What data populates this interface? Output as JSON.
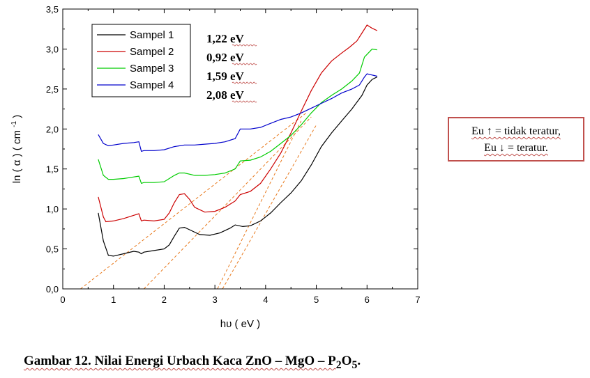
{
  "chart_data": {
    "type": "line",
    "xlabel": "hυ ( eV )",
    "ylabel": "ln ( α ) ( cm",
    "ylabel_sup": "-1",
    "ylabel_end": ")",
    "xlim": [
      0,
      7
    ],
    "ylim": [
      0,
      3.5
    ],
    "x_ticks": [
      0,
      1,
      2,
      3,
      4,
      5,
      6,
      7
    ],
    "y_ticks": [
      0.0,
      0.5,
      1.0,
      1.5,
      2.0,
      2.5,
      3.0,
      3.5
    ],
    "x_tick_labels": [
      "0",
      "1",
      "2",
      "3",
      "4",
      "5",
      "6",
      "7"
    ],
    "y_tick_labels": [
      "0,0",
      "0,5",
      "1,0",
      "1,5",
      "2,0",
      "2,5",
      "3,0",
      "3,5"
    ],
    "legend_position": "top-left",
    "series": [
      {
        "name": "Sampel 1",
        "color": "#000000",
        "points": [
          [
            0.7,
            0.95
          ],
          [
            0.8,
            0.6
          ],
          [
            0.9,
            0.42
          ],
          [
            1.0,
            0.41
          ],
          [
            1.2,
            0.44
          ],
          [
            1.4,
            0.47
          ],
          [
            1.5,
            0.46
          ],
          [
            1.55,
            0.44
          ],
          [
            1.6,
            0.46
          ],
          [
            1.8,
            0.48
          ],
          [
            2.0,
            0.5
          ],
          [
            2.1,
            0.55
          ],
          [
            2.2,
            0.66
          ],
          [
            2.3,
            0.76
          ],
          [
            2.4,
            0.77
          ],
          [
            2.5,
            0.74
          ],
          [
            2.7,
            0.68
          ],
          [
            2.9,
            0.67
          ],
          [
            3.1,
            0.7
          ],
          [
            3.3,
            0.76
          ],
          [
            3.4,
            0.8
          ],
          [
            3.55,
            0.78
          ],
          [
            3.7,
            0.79
          ],
          [
            3.9,
            0.85
          ],
          [
            4.1,
            0.95
          ],
          [
            4.3,
            1.08
          ],
          [
            4.5,
            1.2
          ],
          [
            4.7,
            1.35
          ],
          [
            4.9,
            1.55
          ],
          [
            5.1,
            1.78
          ],
          [
            5.3,
            1.95
          ],
          [
            5.5,
            2.1
          ],
          [
            5.7,
            2.25
          ],
          [
            5.9,
            2.42
          ],
          [
            6.0,
            2.55
          ],
          [
            6.1,
            2.62
          ],
          [
            6.2,
            2.65
          ]
        ]
      },
      {
        "name": "Sampel 2",
        "color": "#cc0000",
        "points": [
          [
            0.7,
            1.15
          ],
          [
            0.8,
            0.9
          ],
          [
            0.85,
            0.84
          ],
          [
            1.0,
            0.85
          ],
          [
            1.2,
            0.88
          ],
          [
            1.4,
            0.92
          ],
          [
            1.5,
            0.94
          ],
          [
            1.55,
            0.85
          ],
          [
            1.6,
            0.86
          ],
          [
            1.8,
            0.85
          ],
          [
            2.0,
            0.87
          ],
          [
            2.1,
            0.95
          ],
          [
            2.2,
            1.08
          ],
          [
            2.3,
            1.18
          ],
          [
            2.4,
            1.19
          ],
          [
            2.5,
            1.12
          ],
          [
            2.6,
            1.02
          ],
          [
            2.8,
            0.96
          ],
          [
            3.0,
            0.97
          ],
          [
            3.2,
            1.02
          ],
          [
            3.4,
            1.1
          ],
          [
            3.5,
            1.18
          ],
          [
            3.7,
            1.22
          ],
          [
            3.9,
            1.32
          ],
          [
            4.1,
            1.5
          ],
          [
            4.3,
            1.7
          ],
          [
            4.5,
            1.95
          ],
          [
            4.7,
            2.22
          ],
          [
            4.9,
            2.48
          ],
          [
            5.1,
            2.7
          ],
          [
            5.3,
            2.85
          ],
          [
            5.5,
            2.95
          ],
          [
            5.65,
            3.02
          ],
          [
            5.8,
            3.1
          ],
          [
            5.9,
            3.2
          ],
          [
            6.0,
            3.3
          ],
          [
            6.1,
            3.26
          ],
          [
            6.2,
            3.23
          ]
        ]
      },
      {
        "name": "Sampel 3",
        "color": "#00cc00",
        "points": [
          [
            0.7,
            1.62
          ],
          [
            0.8,
            1.42
          ],
          [
            0.9,
            1.37
          ],
          [
            1.0,
            1.37
          ],
          [
            1.2,
            1.38
          ],
          [
            1.4,
            1.4
          ],
          [
            1.5,
            1.41
          ],
          [
            1.55,
            1.32
          ],
          [
            1.6,
            1.33
          ],
          [
            1.8,
            1.33
          ],
          [
            2.0,
            1.34
          ],
          [
            2.1,
            1.38
          ],
          [
            2.2,
            1.42
          ],
          [
            2.3,
            1.45
          ],
          [
            2.4,
            1.45
          ],
          [
            2.6,
            1.42
          ],
          [
            2.8,
            1.42
          ],
          [
            3.0,
            1.43
          ],
          [
            3.2,
            1.45
          ],
          [
            3.4,
            1.5
          ],
          [
            3.5,
            1.6
          ],
          [
            3.7,
            1.61
          ],
          [
            3.9,
            1.65
          ],
          [
            4.1,
            1.72
          ],
          [
            4.3,
            1.82
          ],
          [
            4.5,
            1.92
          ],
          [
            4.7,
            2.05
          ],
          [
            4.9,
            2.2
          ],
          [
            5.1,
            2.33
          ],
          [
            5.3,
            2.42
          ],
          [
            5.5,
            2.5
          ],
          [
            5.7,
            2.6
          ],
          [
            5.85,
            2.7
          ],
          [
            5.95,
            2.9
          ],
          [
            6.1,
            3.0
          ],
          [
            6.2,
            2.99
          ]
        ]
      },
      {
        "name": "Sampel 4",
        "color": "#0000cc",
        "points": [
          [
            0.7,
            1.93
          ],
          [
            0.8,
            1.82
          ],
          [
            0.9,
            1.79
          ],
          [
            1.0,
            1.8
          ],
          [
            1.2,
            1.82
          ],
          [
            1.4,
            1.83
          ],
          [
            1.5,
            1.84
          ],
          [
            1.55,
            1.72
          ],
          [
            1.6,
            1.73
          ],
          [
            1.8,
            1.73
          ],
          [
            2.0,
            1.74
          ],
          [
            2.2,
            1.78
          ],
          [
            2.4,
            1.8
          ],
          [
            2.6,
            1.8
          ],
          [
            2.8,
            1.81
          ],
          [
            3.0,
            1.82
          ],
          [
            3.2,
            1.84
          ],
          [
            3.4,
            1.88
          ],
          [
            3.5,
            2.0
          ],
          [
            3.7,
            2.0
          ],
          [
            3.9,
            2.02
          ],
          [
            4.1,
            2.07
          ],
          [
            4.3,
            2.12
          ],
          [
            4.5,
            2.15
          ],
          [
            4.7,
            2.2
          ],
          [
            4.9,
            2.26
          ],
          [
            5.1,
            2.32
          ],
          [
            5.3,
            2.38
          ],
          [
            5.5,
            2.45
          ],
          [
            5.7,
            2.5
          ],
          [
            5.85,
            2.55
          ],
          [
            5.95,
            2.65
          ],
          [
            6.0,
            2.69
          ],
          [
            6.2,
            2.66
          ]
        ]
      }
    ],
    "fit_lines": [
      {
        "color": "#e87a1e",
        "points": [
          [
            0.35,
            0.0
          ],
          [
            4.8,
            2.2
          ]
        ]
      },
      {
        "color": "#e87a1e",
        "points": [
          [
            1.6,
            0.0
          ],
          [
            4.9,
            2.15
          ]
        ]
      },
      {
        "color": "#e87a1e",
        "points": [
          [
            3.05,
            0.0
          ],
          [
            4.7,
            2.1
          ]
        ]
      },
      {
        "color": "#e87a1e",
        "points": [
          [
            3.15,
            0.0
          ],
          [
            5.0,
            2.05
          ]
        ]
      }
    ],
    "energy_labels": [
      "1,22 eV",
      "0,92 eV",
      "1,59 eV",
      "2,08 eV"
    ]
  },
  "annotation": {
    "line1": "Eu ↑ = tidak teratur,",
    "line2": "Eu ↓ = teratur."
  },
  "caption": {
    "prefix": "Gambar 12. Nilai Energi Urbach Kaca ZnO – MgO – P",
    "sub1": "2",
    "mid": "O",
    "sub2": "5",
    "suffix": "."
  }
}
